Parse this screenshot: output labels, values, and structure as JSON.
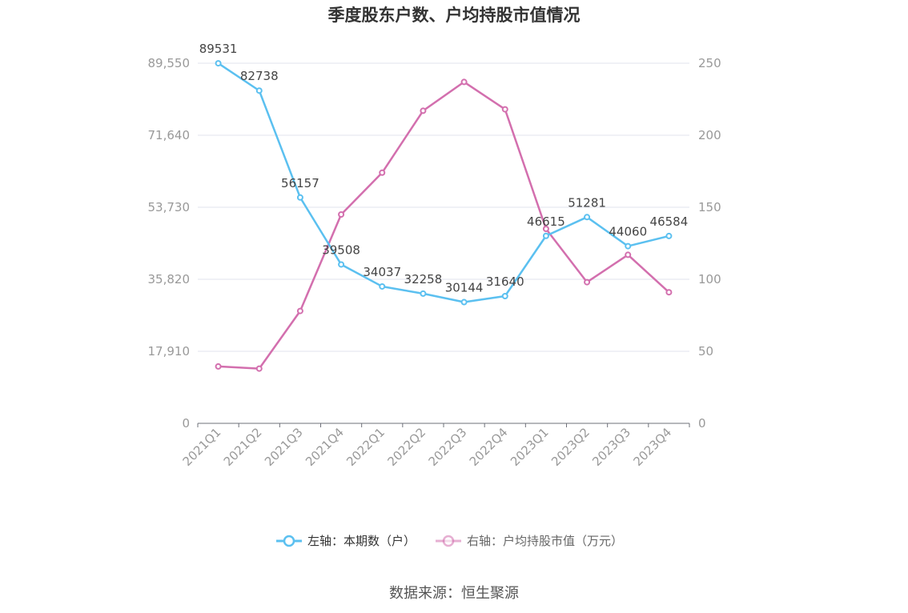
{
  "chart_data": {
    "type": "line",
    "title": "季度股东户数、户均持股市值情况",
    "categories": [
      "2021Q1",
      "2021Q2",
      "2021Q3",
      "2021Q4",
      "2022Q1",
      "2022Q2",
      "2022Q3",
      "2022Q4",
      "2023Q1",
      "2023Q2",
      "2023Q3",
      "2023Q4"
    ],
    "left_axis": {
      "min": 0,
      "max": 89550,
      "ticks": [
        "0",
        "17,910",
        "35,820",
        "53,730",
        "71,640",
        "89,550"
      ],
      "tick_values": [
        0,
        17910,
        35820,
        53730,
        71640,
        89550
      ]
    },
    "right_axis": {
      "min": 0,
      "max": 250,
      "ticks": [
        "0",
        "50",
        "100",
        "150",
        "200",
        "250"
      ],
      "tick_values": [
        0,
        50,
        100,
        150,
        200,
        250
      ]
    },
    "series": [
      {
        "name": "左轴：本期数（户）",
        "axis": "left",
        "color": "#5bc0f0",
        "values": [
          89531,
          82738,
          56157,
          39508,
          34037,
          32258,
          30144,
          31640,
          46615,
          51281,
          44060,
          46584
        ],
        "labels": [
          "89531",
          "82738",
          "56157",
          "39508",
          "34037",
          "32258",
          "30144",
          "31640",
          "46615",
          "51281",
          "44060",
          "46584"
        ]
      },
      {
        "name": "右轴：户均持股市值（万元）",
        "axis": "right",
        "color": "#d36fae",
        "values": [
          39.5,
          38.0,
          78.0,
          145.0,
          174.0,
          217.0,
          237.0,
          218.0,
          135.0,
          98.0,
          117.0,
          91.0
        ]
      }
    ],
    "grid": true,
    "legend_position": "bottom"
  },
  "source": "数据来源：恒生聚源"
}
